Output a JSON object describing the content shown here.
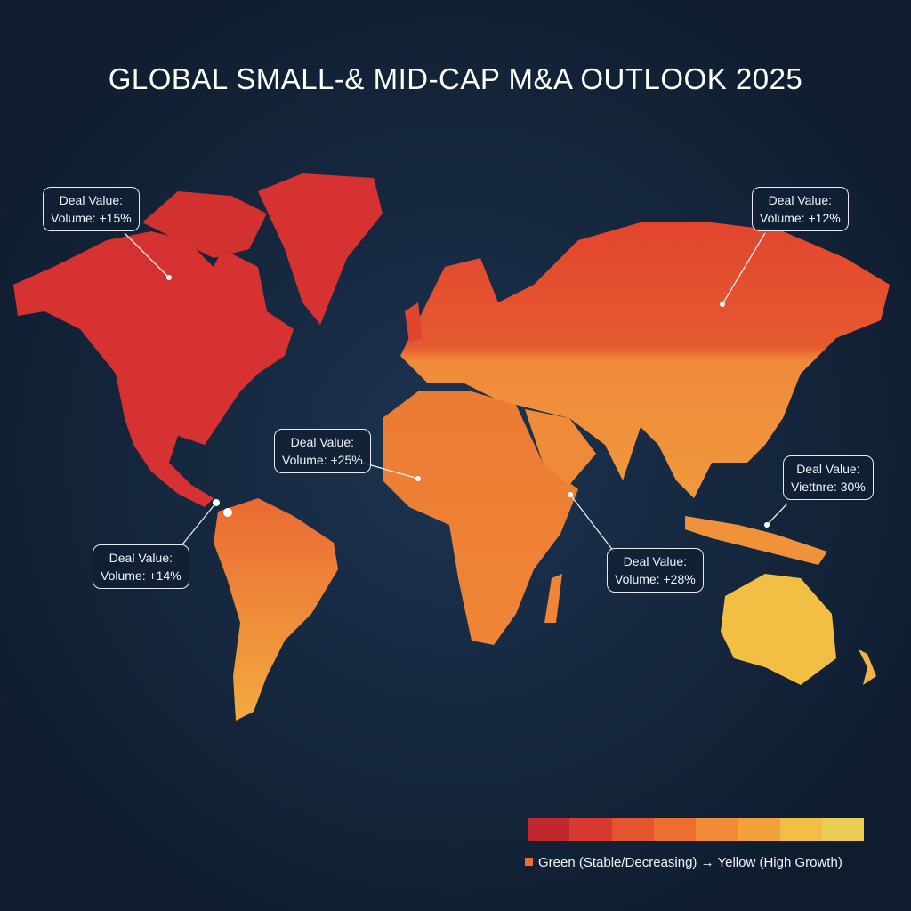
{
  "title": "GLOBAL SMALL-& MID-CAP M&A OUTLOOK 2025",
  "callouts": [
    {
      "id": "north-america",
      "line1": "Deal Value:",
      "line2": "Volume: +15%"
    },
    {
      "id": "russia",
      "line1": "Deal Value:",
      "line2": "Volume: +12%"
    },
    {
      "id": "west-africa",
      "line1": "Deal Value:",
      "line2": "Volume: +25%"
    },
    {
      "id": "southeast-asia",
      "line1": "Deal Value:",
      "line2": "Viettnre: 30%"
    },
    {
      "id": "south-america",
      "line1": "Deal Value:",
      "line2": "Volume: +14%"
    },
    {
      "id": "east-africa",
      "line1": "Deal Value:",
      "line2": "Volume: +28%"
    }
  ],
  "legend": {
    "scale_colors": [
      "#c0282e",
      "#d63a30",
      "#e2552f",
      "#ec6f30",
      "#f08a35",
      "#f3a23b",
      "#f3be45",
      "#ebcc55"
    ],
    "swatch_color": "#ec6f30",
    "text": "Green (Stable/Decreasing) → Yellow (High Growth)"
  },
  "colors": {
    "background": "#13233a",
    "north_america": "#d63232",
    "russia_europe": "#e0452e",
    "africa": "#ec7a32",
    "south_america": "#ee8a38",
    "asia": "#ef8e3a",
    "australia": "#f2bf45"
  }
}
